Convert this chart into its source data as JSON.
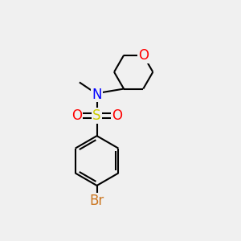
{
  "bg_color": "#f0f0f0",
  "bond_color": "#000000",
  "N_color": "#0000ff",
  "O_color": "#ff0000",
  "S_color": "#cccc00",
  "Br_color": "#cc7722",
  "lw": 1.5,
  "fig_w": 3.0,
  "fig_h": 3.0,
  "dpi": 100,
  "xlim": [
    0,
    10
  ],
  "ylim": [
    0,
    10
  ]
}
